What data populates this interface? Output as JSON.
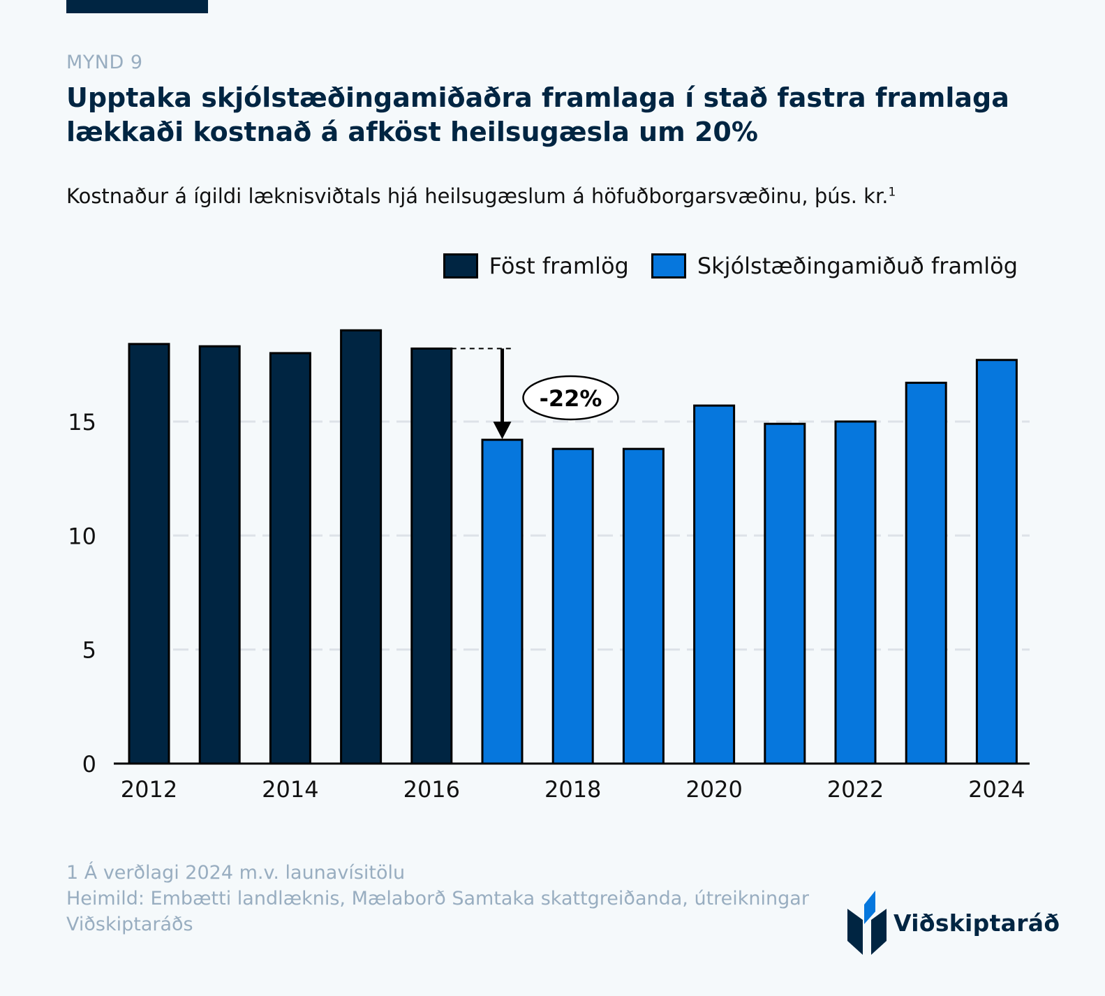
{
  "header": {
    "figure_label": "MYND 9",
    "title": "Upptaka skjólstæðingamiðaðra framlaga í stað fastra framlaga lækkaði kostnað á afköst heilsugæsla um 20%",
    "subtitle": "Kostnaður á ígildi læknisviðtals hjá heilsugæslum á höfuðborgarsvæðinu, þús. kr.",
    "subtitle_footnote_mark": "1"
  },
  "legend": [
    {
      "label": "Föst framlög",
      "color": "#002542"
    },
    {
      "label": "Skjólstæðingamiðuð framlög",
      "color": "#0677dd"
    }
  ],
  "annotation": {
    "label": "-22%",
    "from_year": 2016,
    "to_year": 2017
  },
  "footer": {
    "note": " 1 Á verðlagi 2024 m.v. launavísitölu",
    "source": "Heimild: Embætti landlæknis, Mælaborð Samtaka skattgreiðanda, útreikningar Viðskiptaráðs",
    "logo_text": "Viðskiptaráð"
  },
  "chart_data": {
    "type": "bar",
    "title": "Upptaka skjólstæðingamiðaðra framlaga í stað fastra framlaga lækkaði kostnað á afköst heilsugæsla um 20%",
    "xlabel": "",
    "ylabel": "Kostnaður á ígildi læknisviðtals, þús. kr.",
    "ylim": [
      0,
      20
    ],
    "yticks": [
      0,
      5,
      10,
      15
    ],
    "xtick_labels": [
      "2012",
      "2014",
      "2016",
      "2018",
      "2020",
      "2022",
      "2024"
    ],
    "grid": true,
    "legend_position": "top-right",
    "categories": [
      2012,
      2013,
      2014,
      2015,
      2016,
      2017,
      2018,
      2019,
      2020,
      2021,
      2022,
      2023,
      2024
    ],
    "series": [
      {
        "name": "Föst framlög",
        "color": "#002542",
        "values": [
          18.4,
          18.3,
          18.0,
          19.0,
          18.2,
          null,
          null,
          null,
          null,
          null,
          null,
          null,
          null
        ]
      },
      {
        "name": "Skjólstæðingamiðuð framlög",
        "color": "#0677dd",
        "values": [
          null,
          null,
          null,
          null,
          null,
          14.2,
          13.8,
          13.8,
          15.7,
          14.9,
          15.0,
          16.7,
          17.7
        ]
      }
    ]
  }
}
